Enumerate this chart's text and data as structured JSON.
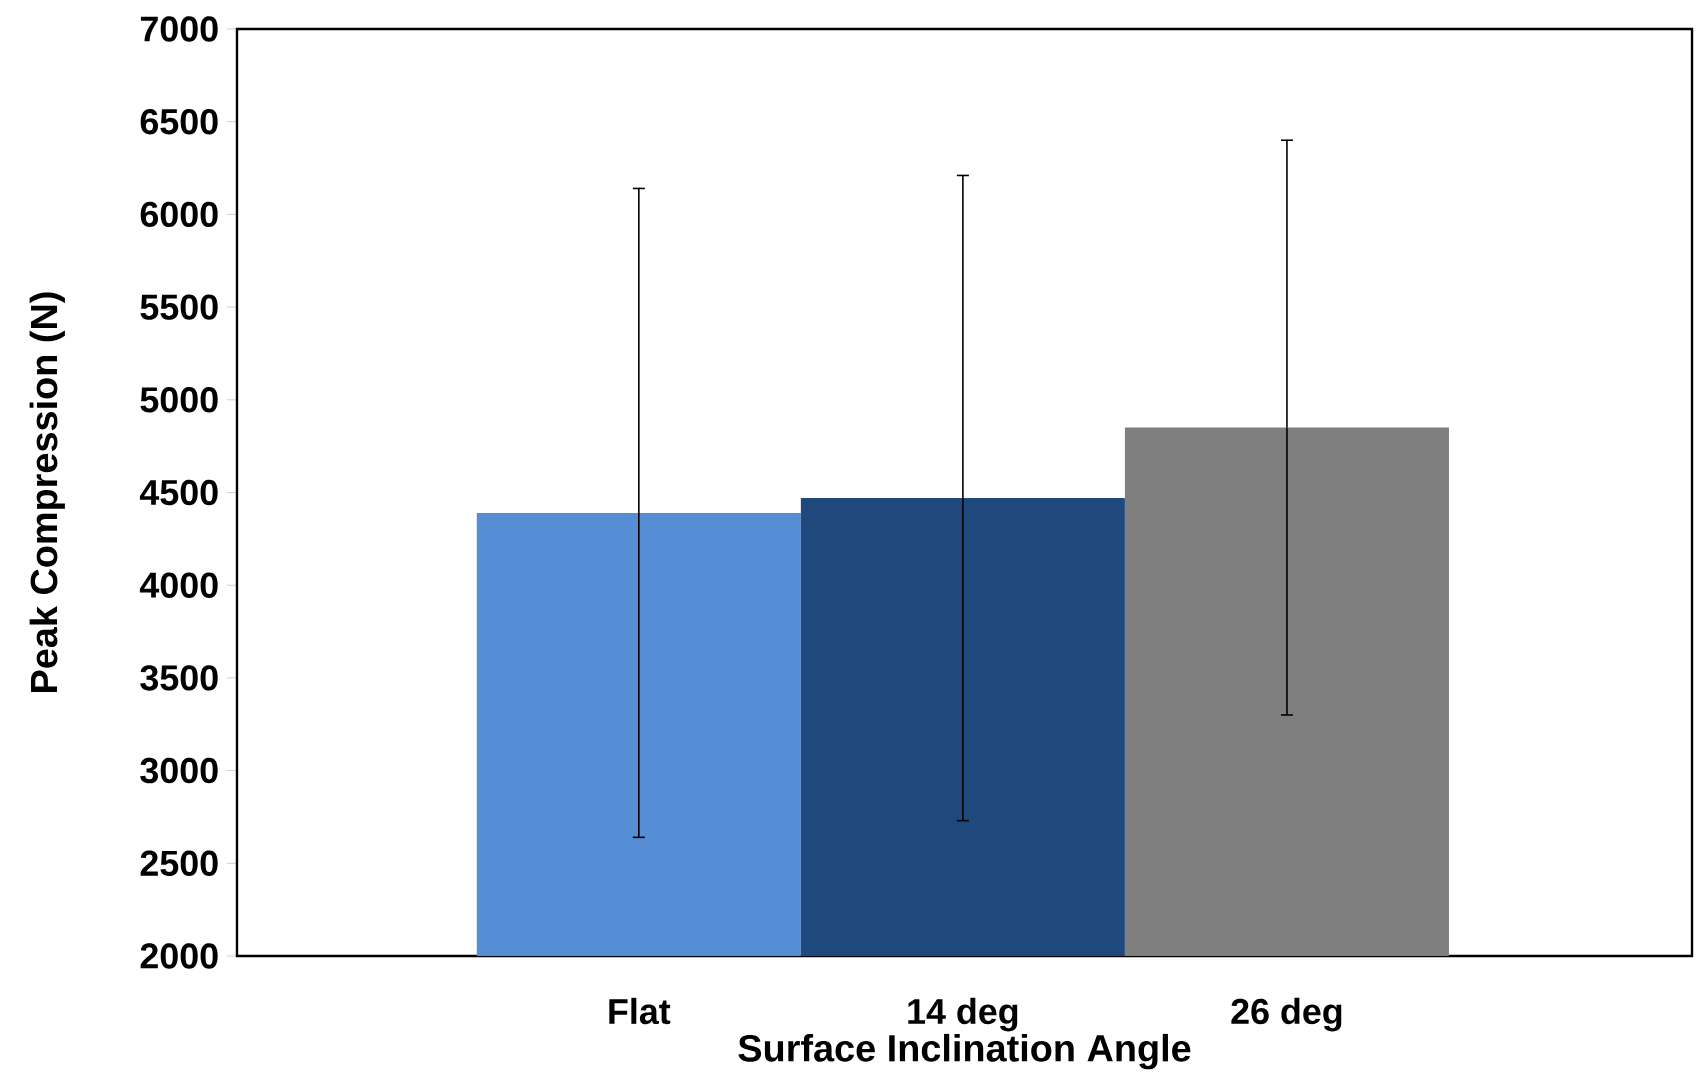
{
  "chart_data": {
    "type": "bar",
    "xlabel": "Surface Inclination  Angle",
    "ylabel": "Peak Compression (N)",
    "categories": [
      "Flat",
      "14 deg",
      "26 deg"
    ],
    "values": [
      4390,
      4470,
      4850
    ],
    "colors": [
      "#558ed5",
      "#1f497d",
      "#7f7f7f"
    ],
    "errors": [
      1750,
      1740,
      1550
    ],
    "ylim": [
      2000,
      7000
    ],
    "yticks": [
      2000,
      2500,
      3000,
      3500,
      4000,
      4500,
      5000,
      5500,
      6000,
      6500,
      7000
    ]
  }
}
